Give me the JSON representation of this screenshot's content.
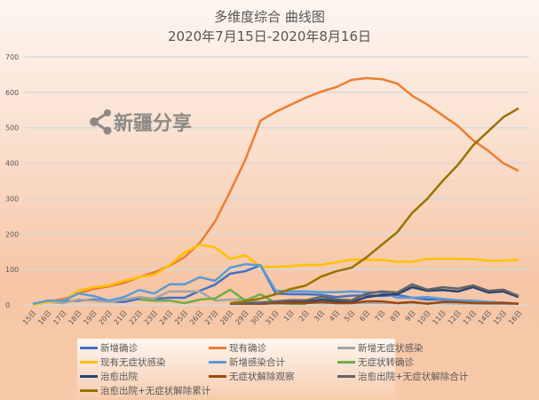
{
  "chart_data": {
    "type": "line",
    "title": "多维度综合 曲线图",
    "subtitle": "2020年7月15日-2020年8月16日",
    "xlabel": "",
    "ylabel": "",
    "ylim": [
      0,
      700
    ],
    "yticks": [
      "0",
      "100",
      "200",
      "300",
      "400",
      "500",
      "600",
      "700"
    ],
    "grid": true,
    "legend_position": "bottom",
    "categories": [
      "15日",
      "16日",
      "17日",
      "18日",
      "19日",
      "20日",
      "21日",
      "22日",
      "23日",
      "24日",
      "25日",
      "26日",
      "27日",
      "28日",
      "29日",
      "30日",
      "31日",
      "1日",
      "2日",
      "3日",
      "4日",
      "5日",
      "6日",
      "7日",
      "8日",
      "9日",
      "10日",
      "11日",
      "12日",
      "13日",
      "14日",
      "15日",
      "16日"
    ],
    "series": [
      {
        "name": "新增确诊",
        "color": "#4472c4",
        "values": [
          3,
          10,
          10,
          12,
          15,
          10,
          8,
          17,
          17,
          20,
          20,
          40,
          57,
          88,
          95,
          112,
          32,
          30,
          30,
          28,
          22,
          26,
          27,
          25,
          28,
          20,
          15,
          15,
          12,
          10,
          8,
          6,
          3
        ]
      },
      {
        "name": "现有确诊",
        "color": "#ed7d31",
        "values": [
          1,
          8,
          17,
          32,
          45,
          52,
          62,
          78,
          92,
          110,
          135,
          175,
          235,
          320,
          410,
          520,
          545,
          565,
          585,
          602,
          615,
          635,
          640,
          637,
          625,
          590,
          565,
          535,
          505,
          465,
          435,
          400,
          378
        ]
      },
      {
        "name": "新增无症状感染",
        "color": "#a5a5a5",
        "values": [
          3,
          8,
          5,
          15,
          12,
          8,
          15,
          22,
          18,
          38,
          38,
          38,
          12,
          15,
          15,
          8,
          8,
          6,
          6,
          5,
          5,
          5,
          6,
          6,
          5,
          5,
          5,
          5,
          4,
          4,
          3,
          3,
          3
        ]
      },
      {
        "name": "现有无症状感染",
        "color": "#ffc000",
        "values": [
          0,
          8,
          12,
          40,
          50,
          55,
          68,
          78,
          85,
          112,
          148,
          170,
          162,
          130,
          140,
          108,
          107,
          110,
          113,
          113,
          120,
          128,
          127,
          127,
          122,
          122,
          130,
          130,
          130,
          129,
          125,
          125,
          127
        ]
      },
      {
        "name": "新增感染合计",
        "color": "#5b9bd5",
        "values": [
          3,
          12,
          12,
          32,
          25,
          12,
          22,
          42,
          32,
          58,
          58,
          78,
          68,
          105,
          115,
          112,
          40,
          38,
          38,
          36,
          36,
          38,
          36,
          35,
          20,
          20,
          22,
          17,
          13,
          12,
          8,
          7,
          3
        ]
      },
      {
        "name": "无症状转确诊",
        "color": "#70ad47",
        "values": [
          null,
          null,
          null,
          null,
          null,
          null,
          null,
          15,
          12,
          12,
          5,
          15,
          18,
          43,
          12,
          30,
          5,
          3,
          3,
          null,
          null,
          null,
          null,
          null,
          null,
          null,
          null,
          null,
          null,
          null,
          null,
          null,
          null
        ]
      },
      {
        "name": "治愈出院",
        "color": "#264478",
        "values": [
          null,
          null,
          null,
          null,
          null,
          null,
          null,
          null,
          null,
          null,
          null,
          null,
          null,
          3,
          3,
          3,
          5,
          8,
          8,
          15,
          10,
          8,
          22,
          28,
          30,
          50,
          40,
          42,
          38,
          50,
          35,
          38,
          22
        ]
      },
      {
        "name": "无症状解除观察",
        "color": "#9e480e",
        "values": [
          null,
          null,
          null,
          null,
          null,
          null,
          null,
          null,
          null,
          null,
          null,
          null,
          null,
          3,
          3,
          3,
          5,
          5,
          5,
          8,
          5,
          5,
          10,
          10,
          5,
          8,
          3,
          8,
          8,
          5,
          5,
          5,
          3
        ]
      },
      {
        "name": "治愈出院+无症状解除合计",
        "color": "#636363",
        "values": [
          null,
          null,
          null,
          null,
          null,
          null,
          null,
          null,
          null,
          null,
          null,
          null,
          null,
          3,
          5,
          6,
          10,
          13,
          13,
          23,
          15,
          13,
          32,
          38,
          35,
          58,
          43,
          50,
          46,
          55,
          40,
          43,
          25
        ]
      },
      {
        "name": "治愈出院+无症状解除累计",
        "color": "#997300",
        "values": [
          null,
          null,
          null,
          null,
          null,
          null,
          null,
          null,
          null,
          null,
          null,
          null,
          null,
          5,
          10,
          18,
          30,
          45,
          55,
          80,
          95,
          105,
          135,
          170,
          205,
          260,
          300,
          350,
          395,
          450,
          490,
          530,
          555
        ]
      }
    ]
  },
  "watermark": {
    "text": "新疆分享",
    "icon": "share-icon"
  }
}
